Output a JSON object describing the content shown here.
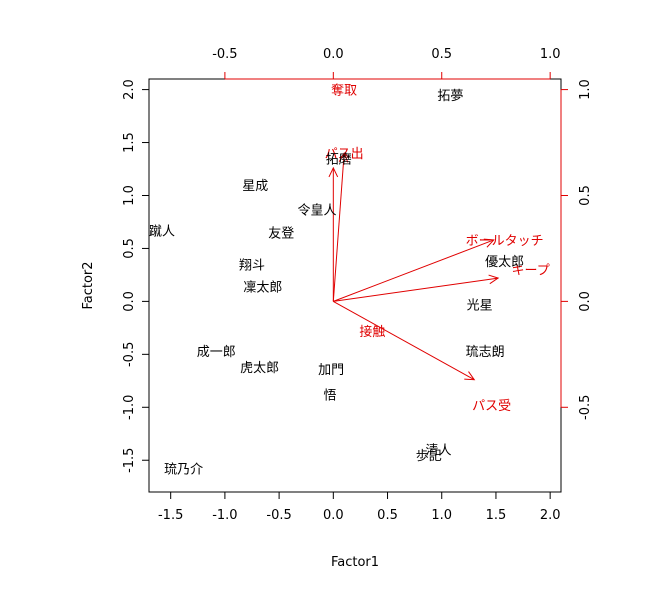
{
  "chart_data": {
    "type": "scatter",
    "subtype": "biplot",
    "title": "",
    "xlabel": "Factor1",
    "ylabel": "Factor2",
    "xlim": [
      -1.7,
      2.1
    ],
    "ylim": [
      -1.8,
      2.1
    ],
    "x_ticks": [
      -1.5,
      -1.0,
      -0.5,
      0.0,
      0.5,
      1.0,
      1.5,
      2.0
    ],
    "x_tick_labels": [
      "-1.5",
      "-1.0",
      "-0.5",
      "0.0",
      "0.5",
      "1.0",
      "1.5",
      "2.0"
    ],
    "y_ticks": [
      -1.5,
      -1.0,
      -0.5,
      0.0,
      0.5,
      1.0,
      1.5,
      2.0
    ],
    "y_tick_labels": [
      "-1.5",
      "-1.0",
      "-0.5",
      "0.0",
      "0.5",
      "1.0",
      "1.5",
      "2.0"
    ],
    "loadings_xlim": [
      -0.85,
      1.05
    ],
    "loadings_ylim": [
      -0.9,
      1.05
    ],
    "top_ticks": [
      -0.5,
      0.0,
      0.5,
      1.0
    ],
    "top_tick_labels": [
      "-0.5",
      "0.0",
      "0.5",
      "1.0"
    ],
    "right_ticks": [
      -0.5,
      0.0,
      0.5,
      1.0
    ],
    "right_tick_labels": [
      "-0.5",
      "0.0",
      "0.5",
      "1.0"
    ],
    "colors": {
      "axes": "#000000",
      "loadings": "#e00000"
    },
    "grid": false,
    "scores": [
      {
        "label": "拓夢",
        "x": 1.08,
        "y": 1.95
      },
      {
        "label": "拓磨",
        "x": 0.05,
        "y": 1.35
      },
      {
        "label": "星成",
        "x": -0.72,
        "y": 1.1
      },
      {
        "label": "令皇人",
        "x": -0.15,
        "y": 0.87
      },
      {
        "label": "蹴人",
        "x": -1.58,
        "y": 0.67
      },
      {
        "label": "友登",
        "x": -0.48,
        "y": 0.65
      },
      {
        "label": "翔斗",
        "x": -0.75,
        "y": 0.35
      },
      {
        "label": "凜太郎",
        "x": -0.65,
        "y": 0.14
      },
      {
        "label": "優太郎",
        "x": 1.58,
        "y": 0.38
      },
      {
        "label": "光星",
        "x": 1.35,
        "y": -0.03
      },
      {
        "label": "琉志朗",
        "x": 1.4,
        "y": -0.47
      },
      {
        "label": "成一郎",
        "x": -1.08,
        "y": -0.47
      },
      {
        "label": "虎太郎",
        "x": -0.68,
        "y": -0.62
      },
      {
        "label": "加門",
        "x": -0.02,
        "y": -0.64
      },
      {
        "label": "悟",
        "x": -0.03,
        "y": -0.88
      },
      {
        "label": "清人",
        "x": 0.97,
        "y": -1.4
      },
      {
        "label": "歩記",
        "x": 0.88,
        "y": -1.45
      },
      {
        "label": "琉乃介",
        "x": -1.38,
        "y": -1.58
      }
    ],
    "loadings": [
      {
        "label": "奪取",
        "x": 0.05,
        "y": 1.0,
        "arrow": false
      },
      {
        "label": "パス出",
        "x": 0.05,
        "y": 0.7,
        "arrow": true
      },
      {
        "label": "パス出",
        "x": 0.0,
        "y": 0.63,
        "arrow": true,
        "hide_label": true
      },
      {
        "label": "ボールタッチ",
        "x": 0.74,
        "y": 0.29,
        "arrow": true,
        "label_dx": 0.05,
        "label_dy": 0.0
      },
      {
        "label": "キープ",
        "x": 0.76,
        "y": 0.11,
        "arrow": true,
        "label_dx": 0.15,
        "label_dy": 0.04
      },
      {
        "label": "接触",
        "x": 0.18,
        "y": -0.14,
        "arrow": false
      },
      {
        "label": "パス受",
        "x": 0.65,
        "y": -0.37,
        "arrow": true,
        "label_dx": 0.08,
        "label_dy": -0.12
      }
    ]
  }
}
